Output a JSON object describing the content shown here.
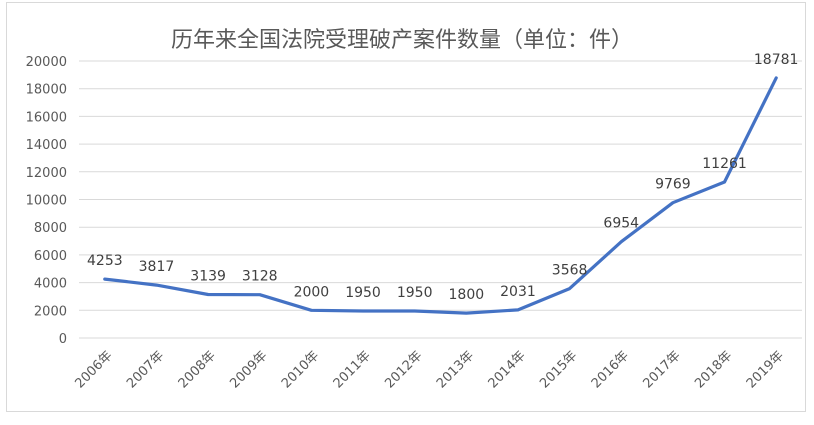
{
  "chart_data": {
    "type": "line",
    "title": "历年来全国法院受理破产案件数量（单位：件）",
    "categories": [
      "2006年",
      "2007年",
      "2008年",
      "2009年",
      "2010年",
      "2011年",
      "2012年",
      "2013年",
      "2014年",
      "2015年",
      "2016年",
      "2017年",
      "2018年",
      "2019年"
    ],
    "series": [
      {
        "values": [
          4253,
          3817,
          3139,
          3128,
          2000,
          1950,
          1950,
          1800,
          2031,
          3568,
          6954,
          9769,
          11261,
          18781
        ]
      }
    ],
    "data_labels": [
      "4253",
      "3817",
      "3139",
      "3128",
      "2000",
      "1950",
      "1950",
      "1800",
      "2031",
      "3568",
      "6954",
      "9769",
      "11261",
      "18781"
    ],
    "y_ticks": [
      "0",
      "2000",
      "4000",
      "6000",
      "8000",
      "10000",
      "12000",
      "14000",
      "16000",
      "18000",
      "20000"
    ],
    "ylim": [
      0,
      20000
    ],
    "grid": true,
    "legend": "none",
    "colors": {
      "line": "#4472c4",
      "grid": "#d9d9d9",
      "text": "#595959"
    }
  }
}
